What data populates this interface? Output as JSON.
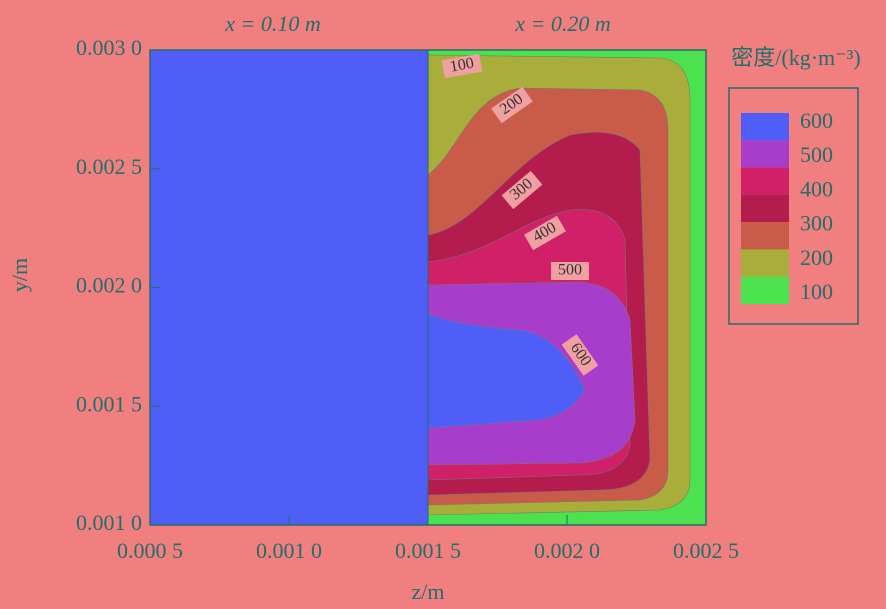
{
  "chart_data": {
    "type": "contour",
    "panel_titles": [
      "x = 0.10 m",
      "x = 0.20 m"
    ],
    "xlabel": "z/m",
    "ylabel": "y/m",
    "legend_title": "密度/(kg·m⁻³)",
    "xlim": [
      0.0005,
      0.0025
    ],
    "xticks": [
      {
        "value": 0.0005,
        "label": "0.000 5"
      },
      {
        "value": 0.001,
        "label": "0.001 0"
      },
      {
        "value": 0.0015,
        "label": "0.001 5"
      },
      {
        "value": 0.002,
        "label": "0.002 0"
      },
      {
        "value": 0.0025,
        "label": "0.002 5"
      }
    ],
    "ylim": [
      0.001,
      0.003
    ],
    "yticks": [
      {
        "value": 0.001,
        "label": "0.001 0"
      },
      {
        "value": 0.0015,
        "label": "0.001 5"
      },
      {
        "value": 0.002,
        "label": "0.002 0"
      },
      {
        "value": 0.0025,
        "label": "0.002 5"
      },
      {
        "value": 0.003,
        "label": "0.003 0"
      }
    ],
    "panel_split": 0.0015,
    "levels": [
      600,
      500,
      400,
      300,
      200,
      100
    ],
    "colors": [
      "#4f5ef7",
      "#a83dcc",
      "#cf2068",
      "#b51c4e",
      "#c95c48",
      "#a9ae3b",
      "#4ce24f"
    ]
  }
}
